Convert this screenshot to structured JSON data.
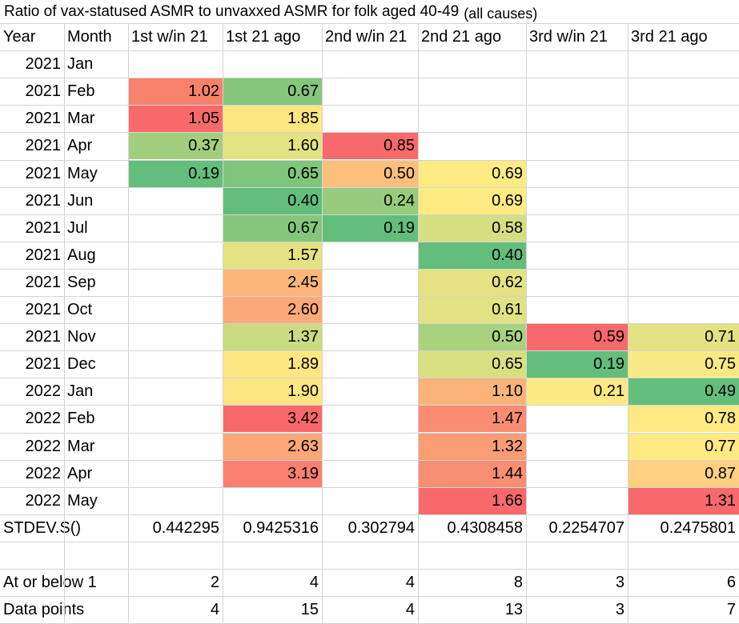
{
  "title": "Ratio of vax-statused ASMR to unvaxxed ASMR for folk aged 40-49",
  "subtitle": "(all causes)",
  "headers": [
    "Year",
    "Month",
    "1st w/in 21",
    "1st 21 ago",
    "2nd w/in 21",
    "2nd 21 ago",
    "3rd w/in 21",
    "3rd 21 ago"
  ],
  "rows": [
    {
      "year": "2021",
      "month": "Jan",
      "values": [
        "",
        "",
        "",
        "",
        "",
        ""
      ]
    },
    {
      "year": "2021",
      "month": "Feb",
      "values": [
        "1.02",
        "0.67",
        "",
        "",
        "",
        ""
      ]
    },
    {
      "year": "2021",
      "month": "Mar",
      "values": [
        "1.05",
        "1.85",
        "",
        "",
        "",
        ""
      ]
    },
    {
      "year": "2021",
      "month": "Apr",
      "values": [
        "0.37",
        "1.60",
        "0.85",
        "",
        "",
        ""
      ]
    },
    {
      "year": "2021",
      "month": "May",
      "values": [
        "0.19",
        "0.65",
        "0.50",
        "0.69",
        "",
        ""
      ]
    },
    {
      "year": "2021",
      "month": "Jun",
      "values": [
        "",
        "0.40",
        "0.24",
        "0.69",
        "",
        ""
      ]
    },
    {
      "year": "2021",
      "month": "Jul",
      "values": [
        "",
        "0.67",
        "0.19",
        "0.58",
        "",
        ""
      ]
    },
    {
      "year": "2021",
      "month": "Aug",
      "values": [
        "",
        "1.57",
        "",
        "0.40",
        "",
        ""
      ]
    },
    {
      "year": "2021",
      "month": "Sep",
      "values": [
        "",
        "2.45",
        "",
        "0.62",
        "",
        ""
      ]
    },
    {
      "year": "2021",
      "month": "Oct",
      "values": [
        "",
        "2.60",
        "",
        "0.61",
        "",
        ""
      ]
    },
    {
      "year": "2021",
      "month": "Nov",
      "values": [
        "",
        "1.37",
        "",
        "0.50",
        "0.59",
        "0.71"
      ]
    },
    {
      "year": "2021",
      "month": "Dec",
      "values": [
        "",
        "1.89",
        "",
        "0.65",
        "0.19",
        "0.75"
      ]
    },
    {
      "year": "2022",
      "month": "Jan",
      "values": [
        "",
        "1.90",
        "",
        "1.10",
        "0.21",
        "0.49"
      ]
    },
    {
      "year": "2022",
      "month": "Feb",
      "values": [
        "",
        "3.42",
        "",
        "1.47",
        "",
        "0.78"
      ]
    },
    {
      "year": "2022",
      "month": "Mar",
      "values": [
        "",
        "2.63",
        "",
        "1.32",
        "",
        "0.77"
      ]
    },
    {
      "year": "2022",
      "month": "Apr",
      "values": [
        "",
        "3.19",
        "",
        "1.44",
        "",
        "0.87"
      ]
    },
    {
      "year": "2022",
      "month": "May",
      "values": [
        "",
        "",
        "",
        "1.66",
        "",
        "1.31"
      ]
    }
  ],
  "colors": [
    [
      "",
      "",
      "",
      "",
      "",
      ""
    ],
    [
      "#f8816e",
      "#85c67c",
      "",
      "",
      "",
      ""
    ],
    [
      "#f8696b",
      "#fee782",
      "",
      "",
      "",
      ""
    ],
    [
      "#a1cf7d",
      "#e4e283",
      "#f8696b",
      "",
      "",
      ""
    ],
    [
      "#63be7b",
      "#80c57c",
      "#fdc07c",
      "#ffeb84",
      "",
      ""
    ],
    [
      "",
      "#63be7b",
      "#97cc7e",
      "#ffeb84",
      "",
      ""
    ],
    [
      "",
      "#86c67c",
      "#63be7b",
      "#d5df82",
      "",
      ""
    ],
    [
      "",
      "#e5e283",
      "",
      "#63be7b",
      "",
      ""
    ],
    [
      "",
      "#fdb57a",
      "",
      "#e4e283",
      "",
      ""
    ],
    [
      "",
      "#fca979",
      "",
      "#e0e283",
      "",
      ""
    ],
    [
      "",
      "#cadc81",
      "",
      "#a9d27f",
      "#f8696b",
      "#e3e283"
    ],
    [
      "",
      "#fee683",
      "",
      "#d9e082",
      "#63be7b",
      "#f8e984"
    ],
    [
      "",
      "#fee683",
      "",
      "#fcb37a",
      "#fbe983",
      "#63be7b"
    ],
    [
      "",
      "#f8696b",
      "",
      "#f98c71",
      "",
      "#fee983"
    ],
    [
      "",
      "#fba778",
      "",
      "#fa9d75",
      "",
      "#fee983"
    ],
    [
      "",
      "#f98070",
      "",
      "#f98f72",
      "",
      "#fed180"
    ],
    [
      "",
      "",
      "",
      "#f8696b",
      "",
      "#f8696b"
    ]
  ],
  "stdev": {
    "label": "STDEV.S()",
    "values": [
      "0.442295",
      "0.9425316",
      "0.302794",
      "0.4308458",
      "0.2254707",
      "0.2475801"
    ]
  },
  "at_or_below": {
    "label": "At or below 1",
    "values": [
      "2",
      "4",
      "4",
      "8",
      "3",
      "6"
    ]
  },
  "data_points": {
    "label": "Data points",
    "values": [
      "4",
      "15",
      "4",
      "13",
      "3",
      "7"
    ]
  }
}
